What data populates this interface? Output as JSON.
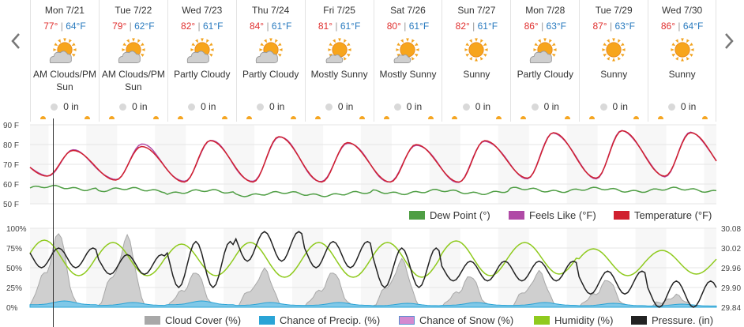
{
  "nav": {
    "prev_icon": "chevron-left-icon",
    "next_icon": "chevron-right-icon"
  },
  "days": [
    {
      "name": "Mon 7/21",
      "hi": "77°",
      "lo": "64°F",
      "icon": "partly-sunny-icon",
      "cond": "AM Clouds/PM Sun",
      "precip": "0 in"
    },
    {
      "name": "Tue 7/22",
      "hi": "79°",
      "lo": "62°F",
      "icon": "partly-sunny-icon",
      "cond": "AM Clouds/PM Sun",
      "precip": "0 in"
    },
    {
      "name": "Wed 7/23",
      "hi": "82°",
      "lo": "61°F",
      "icon": "partly-cloudy-icon",
      "cond": "Partly Cloudy",
      "precip": "0 in"
    },
    {
      "name": "Thu 7/24",
      "hi": "84°",
      "lo": "61°F",
      "icon": "partly-cloudy-icon",
      "cond": "Partly Cloudy",
      "precip": "0 in"
    },
    {
      "name": "Fri 7/25",
      "hi": "81°",
      "lo": "61°F",
      "icon": "mostly-sunny-icon",
      "cond": "Mostly Sunny",
      "precip": "0 in"
    },
    {
      "name": "Sat 7/26",
      "hi": "80°",
      "lo": "61°F",
      "icon": "mostly-sunny-icon",
      "cond": "Mostly Sunny",
      "precip": "0 in"
    },
    {
      "name": "Sun 7/27",
      "hi": "82°",
      "lo": "61°F",
      "icon": "sunny-icon",
      "cond": "Sunny",
      "precip": "0 in"
    },
    {
      "name": "Mon 7/28",
      "hi": "86°",
      "lo": "63°F",
      "icon": "partly-cloudy-icon",
      "cond": "Partly Cloudy",
      "precip": "0 in"
    },
    {
      "name": "Tue 7/29",
      "hi": "87°",
      "lo": "63°F",
      "icon": "sunny-icon",
      "cond": "Sunny",
      "precip": "0 in"
    },
    {
      "name": "Wed 7/30",
      "hi": "86°",
      "lo": "64°F",
      "icon": "sunny-icon",
      "cond": "Sunny",
      "precip": "0 in"
    }
  ],
  "colors": {
    "temperature": "#d0202f",
    "feels_like": "#b04aa6",
    "dew_point": "#4f9e44",
    "cloud_cover": "#a8a8a8",
    "precip_chance": "#2aa4d6",
    "snow_chance": "#d48ad0",
    "humidity": "#8fca1e",
    "pressure": "#222222"
  },
  "chart_data": [
    {
      "type": "line",
      "title": "",
      "x": [
        "Mon 7/21",
        "Tue 7/22",
        "Wed 7/23",
        "Thu 7/24",
        "Fri 7/25",
        "Sat 7/26",
        "Sun 7/27",
        "Mon 7/28",
        "Tue 7/29",
        "Wed 7/30"
      ],
      "ylim": [
        50,
        90
      ],
      "yticks": [
        "90 F",
        "80 F",
        "70 F",
        "60 F",
        "50 F"
      ],
      "series": [
        {
          "name": "Temperature (°F)",
          "daily_high": [
            77,
            79,
            82,
            84,
            81,
            80,
            82,
            86,
            87,
            86
          ],
          "daily_low": [
            64,
            62,
            61,
            61,
            61,
            61,
            61,
            63,
            63,
            64
          ]
        },
        {
          "name": "Feels Like (°F)",
          "daily_high": [
            77,
            80,
            82,
            84,
            81,
            80,
            82,
            86,
            87,
            86
          ],
          "daily_low": [
            64,
            62,
            61,
            61,
            61,
            61,
            61,
            63,
            63,
            64
          ]
        },
        {
          "name": "Dew Point (°)",
          "daily": [
            58,
            57,
            56,
            55,
            55,
            56,
            56,
            57,
            57,
            57
          ]
        }
      ],
      "legend": [
        "Dew Point (°)",
        "Feels Like (°F)",
        "Temperature (°F)"
      ],
      "legend_position": "bottom-right",
      "grid": true
    },
    {
      "type": "area",
      "title": "",
      "x": [
        "Mon 7/21",
        "Tue 7/22",
        "Wed 7/23",
        "Thu 7/24",
        "Fri 7/25",
        "Sat 7/26",
        "Sun 7/27",
        "Mon 7/28",
        "Tue 7/29",
        "Wed 7/30"
      ],
      "ylim_left": [
        0,
        100
      ],
      "yticks_left": [
        "100%",
        "75%",
        "50%",
        "25%",
        "0%"
      ],
      "ylim_right": [
        29.84,
        30.08
      ],
      "yticks_right": [
        "30.08",
        "30.02",
        "29.96",
        "29.90",
        "29.84"
      ],
      "series": [
        {
          "name": "Cloud Cover (%)",
          "daily_peak": [
            95,
            90,
            45,
            48,
            45,
            60,
            40,
            45,
            35,
            15
          ]
        },
        {
          "name": "Chance of Precip. (%)",
          "daily_peak": [
            8,
            6,
            8,
            6,
            6,
            5,
            6,
            6,
            5,
            4
          ]
        },
        {
          "name": "Chance of Snow (%)",
          "daily_peak": [
            0,
            0,
            0,
            0,
            0,
            0,
            0,
            0,
            0,
            0
          ]
        },
        {
          "name": "Humidity (%)",
          "daily_max": [
            85,
            82,
            80,
            82,
            82,
            82,
            84,
            82,
            74,
            72
          ],
          "daily_min": [
            40,
            40,
            40,
            38,
            38,
            38,
            40,
            42,
            40,
            42
          ]
        },
        {
          "name": "Pressure. (in)",
          "daily_max": [
            30.02,
            30.0,
            30.04,
            30.07,
            30.04,
            30.02,
            29.98,
            29.98,
            29.95,
            29.92
          ],
          "daily_min": [
            29.96,
            29.94,
            29.9,
            29.98,
            29.96,
            29.9,
            29.92,
            29.92,
            29.88,
            29.84
          ]
        }
      ],
      "legend": [
        "Cloud Cover (%)",
        "Chance of Precip. (%)",
        "Chance of Snow (%)",
        "Humidity (%)",
        "Pressure. (in)"
      ],
      "legend_position": "bottom",
      "grid": true
    }
  ]
}
